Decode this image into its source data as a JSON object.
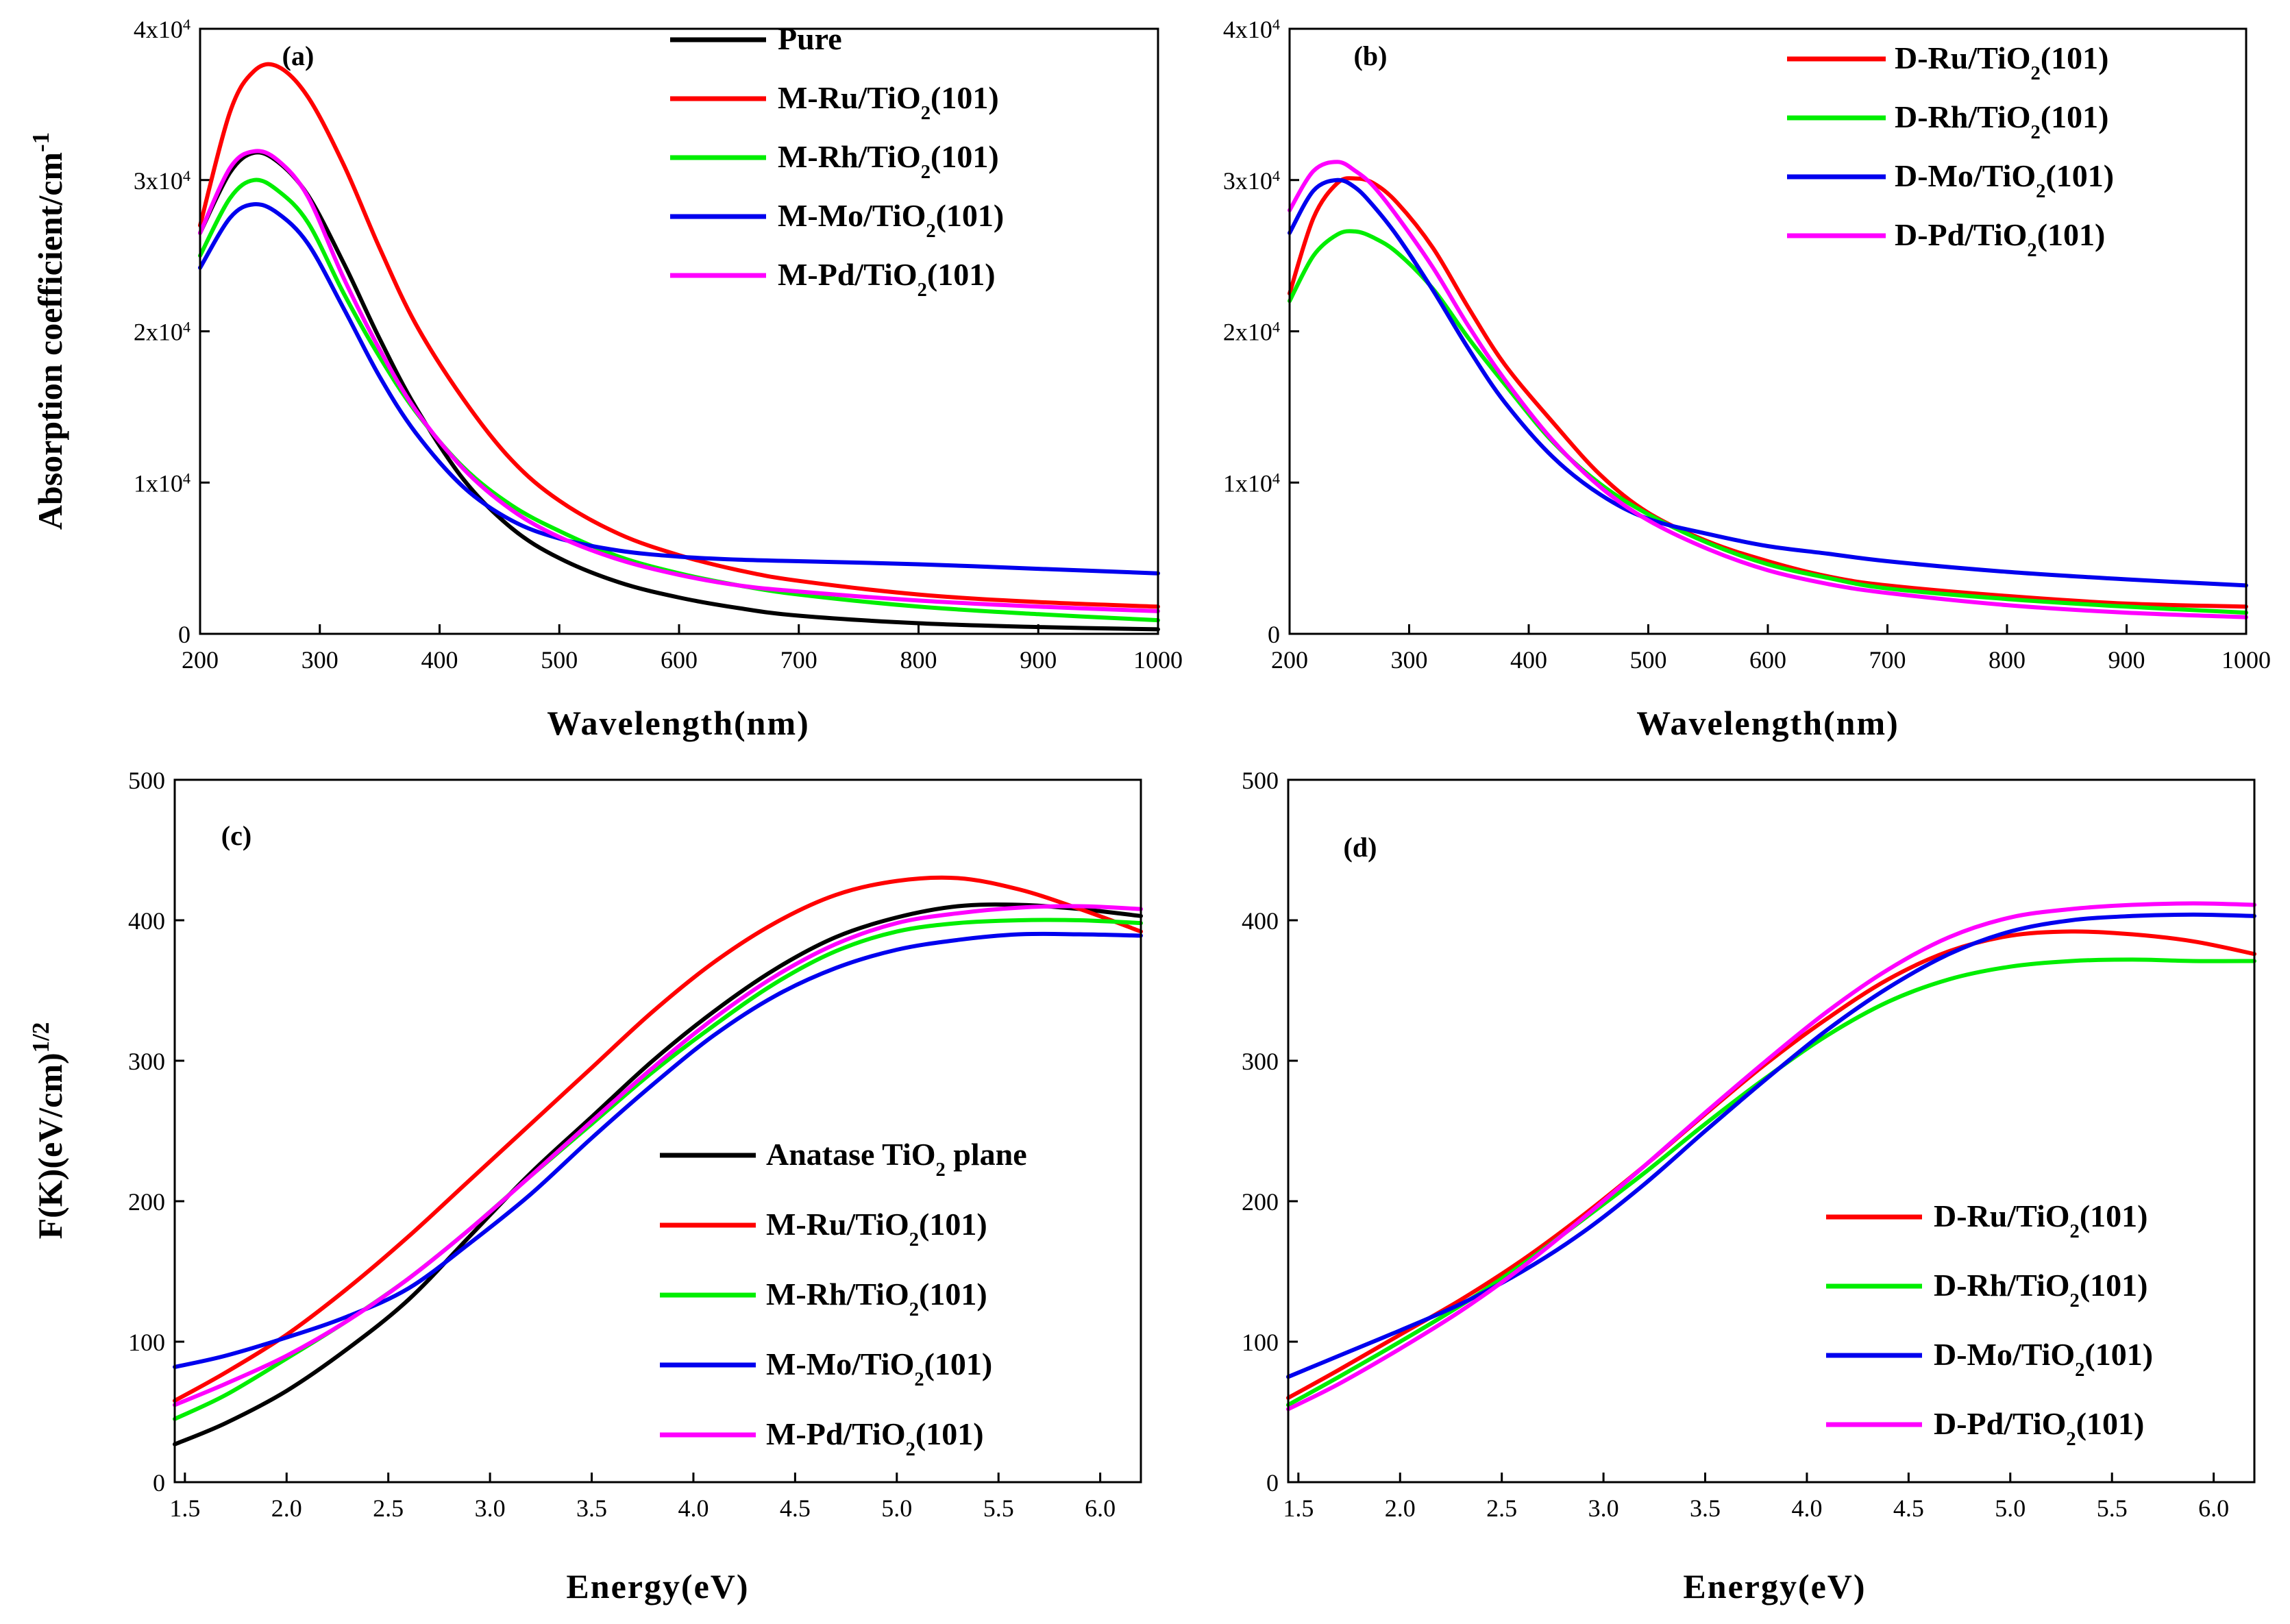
{
  "figure_colors": {
    "pure": "#000000",
    "Ru": "#ff0000",
    "Rh": "#00ee00",
    "Mo": "#0000ee",
    "Pd": "#ff00ff",
    "anatase": "#000000"
  },
  "chart_data": [
    {
      "type": "line",
      "panel_label": "(a)",
      "xlabel": "Wavelength(nm)",
      "ylabel": "Absorption coefficient/cm",
      "ylabel_sup": "-1",
      "xlim": [
        200,
        1000
      ],
      "ylim": [
        0,
        40000
      ],
      "x_ticks": [
        "200",
        "300",
        "400",
        "500",
        "600",
        "700",
        "800",
        "900",
        "1000"
      ],
      "y_ticks": [
        {
          "value": 0,
          "base": "0",
          "exp": ""
        },
        {
          "value": 10000,
          "base": "1x10",
          "exp": "4"
        },
        {
          "value": 20000,
          "base": "2x10",
          "exp": "4"
        },
        {
          "value": 30000,
          "base": "3x10",
          "exp": "4"
        },
        {
          "value": 40000,
          "base": "4x10",
          "exp": "4"
        }
      ],
      "legend_position": "top-right",
      "x": [
        200,
        225,
        245,
        265,
        290,
        320,
        350,
        380,
        420,
        460,
        500,
        550,
        600,
        650,
        700,
        800,
        900,
        1000
      ],
      "series": [
        {
          "name": "Pure",
          "label_main": "Pure",
          "label_sub": "",
          "label_tail": "",
          "color_key": "pure",
          "values": [
            26500,
            30500,
            31800,
            31200,
            29000,
            24500,
            19500,
            15000,
            10200,
            7000,
            5000,
            3400,
            2400,
            1700,
            1200,
            700,
            450,
            300
          ]
        },
        {
          "name": "M-Ru/TiO2(101)",
          "label_main": "M-Ru/TiO",
          "label_sub": "2",
          "label_tail": "(101)",
          "color_key": "Ru",
          "values": [
            27000,
            34500,
            37200,
            37500,
            35500,
            31000,
            25500,
            20500,
            15500,
            11500,
            8800,
            6600,
            5200,
            4200,
            3500,
            2600,
            2100,
            1800
          ]
        },
        {
          "name": "M-Rh/TiO2(101)",
          "label_main": "M-Rh/TiO",
          "label_sub": "2",
          "label_tail": "(101)",
          "color_key": "Rh",
          "values": [
            25000,
            28800,
            30000,
            29300,
            27200,
            22500,
            18300,
            14700,
            11000,
            8500,
            6800,
            5100,
            4000,
            3200,
            2600,
            1800,
            1300,
            900
          ]
        },
        {
          "name": "M-Mo/TiO2(101)",
          "label_main": "M-Mo/TiO",
          "label_sub": "2",
          "label_tail": "(101)",
          "color_key": "Mo",
          "values": [
            24200,
            27500,
            28400,
            27800,
            25800,
            21500,
            17000,
            13300,
            9700,
            7500,
            6300,
            5500,
            5100,
            4900,
            4800,
            4600,
            4300,
            4000
          ]
        },
        {
          "name": "M-Pd/TiO2(101)",
          "label_main": "M-Pd/TiO",
          "label_sub": "2",
          "label_tail": "(101)",
          "color_key": "Pd",
          "values": [
            26500,
            30800,
            31900,
            31300,
            28900,
            23500,
            18800,
            14800,
            10900,
            8200,
            6400,
            4900,
            3900,
            3200,
            2800,
            2200,
            1800,
            1500
          ]
        }
      ]
    },
    {
      "type": "line",
      "panel_label": "(b)",
      "xlabel": "Wavelength(nm)",
      "ylabel": "",
      "ylabel_sup": "",
      "xlim": [
        200,
        1000
      ],
      "ylim": [
        0,
        40000
      ],
      "x_ticks": [
        "200",
        "300",
        "400",
        "500",
        "600",
        "700",
        "800",
        "900",
        "1000"
      ],
      "y_ticks": [
        {
          "value": 0,
          "base": "0",
          "exp": ""
        },
        {
          "value": 10000,
          "base": "1x10",
          "exp": "4"
        },
        {
          "value": 20000,
          "base": "2x10",
          "exp": "4"
        },
        {
          "value": 30000,
          "base": "3x10",
          "exp": "4"
        },
        {
          "value": 40000,
          "base": "4x10",
          "exp": "4"
        }
      ],
      "legend_position": "top-right",
      "x": [
        200,
        220,
        240,
        255,
        270,
        290,
        320,
        350,
        380,
        420,
        460,
        500,
        550,
        600,
        650,
        700,
        800,
        900,
        1000
      ],
      "series": [
        {
          "name": "D-Ru/TiO2(101)",
          "label_main": "D-Ru/TiO",
          "label_sub": "2",
          "label_tail": "(101)",
          "color_key": "Ru",
          "values": [
            22500,
            27500,
            29800,
            30100,
            29800,
            28500,
            25500,
            21500,
            17800,
            14000,
            10500,
            8000,
            6100,
            4800,
            3800,
            3200,
            2500,
            2000,
            1800
          ]
        },
        {
          "name": "D-Rh/TiO2(101)",
          "label_main": "D-Rh/TiO",
          "label_sub": "2",
          "label_tail": "(101)",
          "color_key": "Rh",
          "values": [
            22000,
            25000,
            26400,
            26600,
            26200,
            25200,
            22800,
            19500,
            16500,
            12700,
            9900,
            7900,
            6000,
            4600,
            3700,
            3000,
            2300,
            1800,
            1400
          ]
        },
        {
          "name": "D-Mo/TiO2(101)",
          "label_main": "D-Mo/TiO",
          "label_sub": "2",
          "label_tail": "(101)",
          "color_key": "Mo",
          "values": [
            26500,
            29300,
            30000,
            29500,
            28300,
            26300,
            22700,
            18800,
            15300,
            11700,
            9200,
            7600,
            6600,
            5800,
            5300,
            4800,
            4100,
            3600,
            3200
          ]
        },
        {
          "name": "D-Pd/TiO2(101)",
          "label_main": "D-Pd/TiO",
          "label_sub": "2",
          "label_tail": "(101)",
          "color_key": "Pd",
          "values": [
            28000,
            30600,
            31200,
            30600,
            29600,
            27600,
            24200,
            20300,
            16800,
            12800,
            9700,
            7500,
            5600,
            4200,
            3300,
            2700,
            1900,
            1400,
            1100
          ]
        }
      ]
    },
    {
      "type": "line",
      "panel_label": "(c)",
      "xlabel": "Energy(eV)",
      "ylabel": "F(K)(eV/cm)",
      "ylabel_sup": "1/2",
      "xlim": [
        1.45,
        6.2
      ],
      "ylim": [
        0,
        500
      ],
      "x_ticks": [
        "1.5",
        "2.0",
        "2.5",
        "3.0",
        "3.5",
        "4.0",
        "4.5",
        "5.0",
        "5.5",
        "6.0"
      ],
      "y_ticks": [
        {
          "value": 0,
          "base": "0",
          "exp": ""
        },
        {
          "value": 100,
          "base": "100",
          "exp": ""
        },
        {
          "value": 200,
          "base": "200",
          "exp": ""
        },
        {
          "value": 300,
          "base": "300",
          "exp": ""
        },
        {
          "value": 400,
          "base": "400",
          "exp": ""
        },
        {
          "value": 500,
          "base": "500",
          "exp": ""
        }
      ],
      "legend_position": "bottom-right",
      "x": [
        1.45,
        1.7,
        2.0,
        2.3,
        2.6,
        2.9,
        3.2,
        3.5,
        3.8,
        4.1,
        4.4,
        4.7,
        5.0,
        5.3,
        5.6,
        5.9,
        6.2
      ],
      "series": [
        {
          "name": "Anatase TiO2 plane",
          "label_main": "Anatase TiO",
          "label_sub": "2",
          "label_tail": " plane",
          "color_key": "anatase",
          "values": [
            27,
            42,
            65,
            95,
            130,
            175,
            220,
            260,
            300,
            335,
            365,
            388,
            402,
            410,
            411,
            408,
            403
          ]
        },
        {
          "name": "M-Ru/TiO2(101)",
          "label_main": "M-Ru/TiO",
          "label_sub": "2",
          "label_tail": "(101)",
          "color_key": "Ru",
          "values": [
            58,
            78,
            105,
            138,
            175,
            215,
            255,
            295,
            335,
            370,
            398,
            418,
            428,
            430,
            422,
            408,
            392
          ]
        },
        {
          "name": "M-Rh/TiO2(101)",
          "label_main": "M-Rh/TiO",
          "label_sub": "2",
          "label_tail": "(101)",
          "color_key": "Rh",
          "values": [
            45,
            62,
            88,
            115,
            145,
            180,
            218,
            255,
            292,
            325,
            355,
            378,
            392,
            398,
            400,
            400,
            398
          ]
        },
        {
          "name": "M-Mo/TiO2(101)",
          "label_main": "M-Mo/TiO",
          "label_sub": "2",
          "label_tail": "(101)",
          "color_key": "Mo",
          "values": [
            82,
            90,
            103,
            118,
            138,
            170,
            205,
            245,
            283,
            318,
            346,
            366,
            379,
            386,
            390,
            390,
            389
          ]
        },
        {
          "name": "M-Pd/TiO2(101)",
          "label_main": "M-Pd/TiO",
          "label_sub": "2",
          "label_tail": "(101)",
          "color_key": "Pd",
          "values": [
            55,
            70,
            90,
            115,
            145,
            180,
            218,
            257,
            295,
            330,
            360,
            383,
            398,
            405,
            409,
            410,
            408
          ]
        }
      ]
    },
    {
      "type": "line",
      "panel_label": "(d)",
      "xlabel": "Energy(eV)",
      "ylabel": "",
      "ylabel_sup": "",
      "xlim": [
        1.45,
        6.2
      ],
      "ylim": [
        0,
        500
      ],
      "x_ticks": [
        "1.5",
        "2.0",
        "2.5",
        "3.0",
        "3.5",
        "4.0",
        "4.5",
        "5.0",
        "5.5",
        "6.0"
      ],
      "y_ticks": [
        {
          "value": 0,
          "base": "0",
          "exp": ""
        },
        {
          "value": 100,
          "base": "100",
          "exp": ""
        },
        {
          "value": 200,
          "base": "200",
          "exp": ""
        },
        {
          "value": 300,
          "base": "300",
          "exp": ""
        },
        {
          "value": 400,
          "base": "400",
          "exp": ""
        },
        {
          "value": 500,
          "base": "500",
          "exp": ""
        }
      ],
      "legend_position": "bottom-right",
      "x": [
        1.45,
        1.7,
        2.0,
        2.3,
        2.6,
        2.9,
        3.2,
        3.5,
        3.8,
        4.1,
        4.4,
        4.7,
        5.0,
        5.3,
        5.6,
        5.9,
        6.2
      ],
      "series": [
        {
          "name": "D-Ru/TiO2(101)",
          "label_main": "D-Ru/TiO",
          "label_sub": "2",
          "label_tail": "(101)",
          "color_key": "Ru",
          "values": [
            60,
            80,
            105,
            130,
            158,
            190,
            225,
            262,
            298,
            330,
            358,
            378,
            389,
            392,
            390,
            385,
            376
          ]
        },
        {
          "name": "D-Rh/TiO2(101)",
          "label_main": "D-Rh/TiO",
          "label_sub": "2",
          "label_tail": "(101)",
          "color_key": "Rh",
          "values": [
            55,
            75,
            100,
            126,
            155,
            187,
            220,
            255,
            288,
            318,
            342,
            358,
            367,
            371,
            372,
            371,
            371
          ]
        },
        {
          "name": "D-Mo/TiO2(101)",
          "label_main": "D-Mo/TiO",
          "label_sub": "2",
          "label_tail": "(101)",
          "color_key": "Mo",
          "values": [
            75,
            90,
            108,
            127,
            150,
            178,
            212,
            250,
            287,
            322,
            352,
            376,
            392,
            400,
            403,
            404,
            403
          ]
        },
        {
          "name": "D-Pd/TiO2(101)",
          "label_main": "D-Pd/TiO",
          "label_sub": "2",
          "label_tail": "(101)",
          "color_key": "Pd",
          "values": [
            52,
            70,
            95,
            122,
            153,
            188,
            225,
            263,
            300,
            335,
            365,
            388,
            402,
            408,
            411,
            412,
            411
          ]
        }
      ]
    }
  ]
}
